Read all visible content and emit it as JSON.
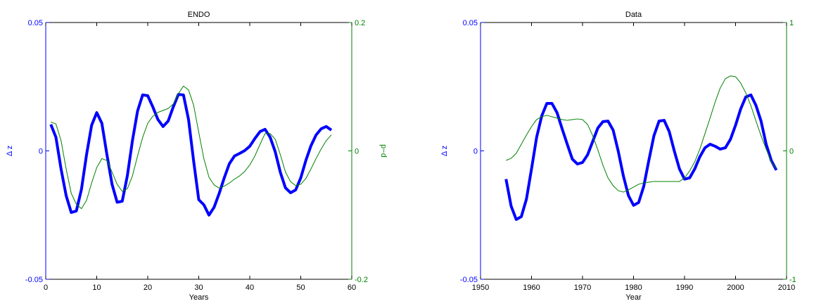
{
  "chart_data": [
    {
      "type": "line",
      "title": "ENDO",
      "xlabel": "Years",
      "ylabel": "Δ z",
      "y2label": "p−d",
      "x": [
        1,
        2,
        3,
        4,
        5,
        6,
        7,
        8,
        9,
        10,
        11,
        12,
        13,
        14,
        15,
        16,
        17,
        18,
        19,
        20,
        21,
        22,
        23,
        24,
        25,
        26,
        27,
        28,
        29,
        30,
        31,
        32,
        33,
        34,
        35,
        36,
        37,
        38,
        39,
        40,
        41,
        42,
        43,
        44,
        45,
        46,
        47,
        48,
        49,
        50,
        51,
        52,
        53,
        54,
        55,
        56
      ],
      "xlim": [
        0,
        60
      ],
      "xticks": [
        0,
        10,
        20,
        30,
        40,
        50,
        60
      ],
      "ylim": [
        -0.05,
        0.05
      ],
      "yticks": [
        -0.05,
        0,
        0.05
      ],
      "y2lim": [
        -0.2,
        0.2
      ],
      "y2ticks": [
        -0.2,
        0,
        0.2
      ],
      "ycolor": "#0000ff",
      "y2color": "#008000",
      "series": [
        {
          "name": "Δ z",
          "color": "#0000ff",
          "linewidth": 4,
          "values": [
            0.0103,
            0.0053,
            -0.007,
            -0.0174,
            -0.024,
            -0.0234,
            -0.015,
            -0.0015,
            0.01,
            0.0149,
            0.0108,
            -0.0015,
            -0.013,
            -0.02,
            -0.0196,
            -0.0097,
            0.004,
            0.0155,
            0.0218,
            0.0215,
            0.0171,
            0.0122,
            0.0095,
            0.0116,
            0.0171,
            0.022,
            0.0218,
            0.0122,
            -0.004,
            -0.019,
            -0.021,
            -0.025,
            -0.022,
            -0.0166,
            -0.0105,
            -0.005,
            -0.002,
            -0.001,
            0.0001,
            0.0018,
            0.0048,
            0.0075,
            0.0084,
            0.0053,
            -0.0004,
            -0.0084,
            -0.0144,
            -0.0163,
            -0.0152,
            -0.0105,
            -0.0037,
            0.002,
            0.0062,
            0.0086,
            0.0095,
            0.0081
          ]
        },
        {
          "name": "p−d",
          "color": "#008000",
          "linewidth": 1,
          "axis": "y2",
          "values": [
            0.045,
            0.042,
            0.016,
            -0.028,
            -0.066,
            -0.083,
            -0.09,
            -0.077,
            -0.05,
            -0.026,
            -0.012,
            -0.015,
            -0.033,
            -0.052,
            -0.063,
            -0.059,
            -0.039,
            -0.008,
            0.021,
            0.043,
            0.054,
            0.06,
            0.063,
            0.066,
            0.073,
            0.089,
            0.101,
            0.095,
            0.071,
            0.029,
            -0.012,
            -0.041,
            -0.053,
            -0.058,
            -0.055,
            -0.05,
            -0.044,
            -0.039,
            -0.032,
            -0.022,
            -0.008,
            0.01,
            0.027,
            0.027,
            0.018,
            -0.006,
            -0.033,
            -0.048,
            -0.054,
            -0.052,
            -0.043,
            -0.028,
            -0.012,
            0.003,
            0.016,
            0.025
          ]
        }
      ]
    },
    {
      "type": "line",
      "title": "Data",
      "xlabel": "Year",
      "ylabel": "Δ z",
      "y2label": "p−d",
      "x": [
        1955,
        1956,
        1957,
        1958,
        1959,
        1960,
        1961,
        1962,
        1963,
        1964,
        1965,
        1966,
        1967,
        1968,
        1969,
        1970,
        1971,
        1972,
        1973,
        1974,
        1975,
        1976,
        1977,
        1978,
        1979,
        1980,
        1981,
        1982,
        1983,
        1984,
        1985,
        1986,
        1987,
        1988,
        1989,
        1990,
        1991,
        1992,
        1993,
        1994,
        1995,
        1996,
        1997,
        1998,
        1999,
        2000,
        2001,
        2002,
        2003,
        2004,
        2005,
        2006,
        2007,
        2008
      ],
      "xlim": [
        1950,
        2010
      ],
      "xticks": [
        1950,
        1960,
        1970,
        1980,
        1990,
        2000,
        2010
      ],
      "ylim": [
        -0.05,
        0.05
      ],
      "yticks": [
        -0.05,
        0,
        0.05
      ],
      "y2lim": [
        -1,
        1
      ],
      "y2ticks": [
        -1,
        0,
        1
      ],
      "ycolor": "#0000ff",
      "y2color": "#008000",
      "series": [
        {
          "name": "Δ z",
          "color": "#0000ff",
          "linewidth": 4,
          "values": [
            -0.011,
            -0.0215,
            -0.0267,
            -0.0256,
            -0.0188,
            -0.007,
            0.0053,
            0.0136,
            0.0185,
            0.0185,
            0.0149,
            0.0086,
            0.0026,
            -0.0032,
            -0.0051,
            -0.0045,
            -0.0015,
            0.0037,
            0.0089,
            0.0114,
            0.0116,
            0.0081,
            -0.0001,
            -0.0097,
            -0.0174,
            -0.0212,
            -0.0201,
            -0.0138,
            -0.0037,
            0.0059,
            0.0116,
            0.0119,
            0.0075,
            -0.0001,
            -0.007,
            -0.011,
            -0.0105,
            -0.007,
            -0.0023,
            0.0012,
            0.0026,
            0.0018,
            0.0007,
            0.0012,
            0.0045,
            0.01,
            0.0163,
            0.021,
            0.0218,
            0.0177,
            0.0116,
            0.0026,
            -0.0037,
            -0.0075
          ]
        },
        {
          "name": "p−d",
          "color": "#008000",
          "linewidth": 1,
          "axis": "y2",
          "values": [
            -0.074,
            -0.058,
            -0.019,
            0.052,
            0.123,
            0.189,
            0.244,
            0.266,
            0.277,
            0.266,
            0.255,
            0.244,
            0.238,
            0.244,
            0.249,
            0.244,
            0.205,
            0.118,
            0.008,
            -0.112,
            -0.211,
            -0.271,
            -0.31,
            -0.321,
            -0.304,
            -0.282,
            -0.26,
            -0.249,
            -0.244,
            -0.238,
            -0.238,
            -0.238,
            -0.238,
            -0.238,
            -0.238,
            -0.211,
            -0.156,
            -0.085,
            0.014,
            0.134,
            0.255,
            0.381,
            0.49,
            0.562,
            0.584,
            0.578,
            0.529,
            0.452,
            0.353,
            0.233,
            0.118,
            0.014,
            -0.085,
            -0.14
          ]
        }
      ]
    }
  ]
}
